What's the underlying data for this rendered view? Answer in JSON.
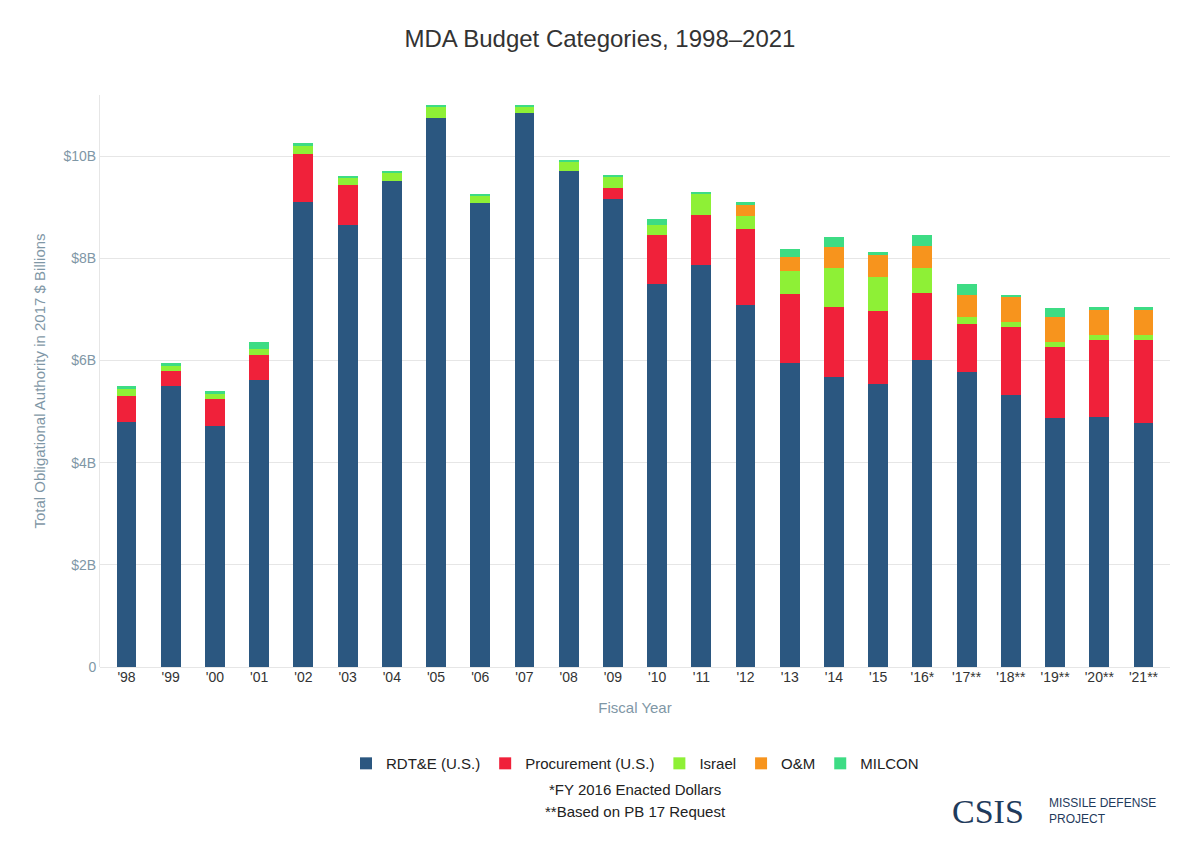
{
  "chart_data": {
    "type": "bar",
    "title": "MDA Budget Categories, 1998–2021",
    "x_label": "Fiscal Year",
    "y_label": "Total Obligational Authority in 2017 $ Billions",
    "categories": [
      "'98",
      "'99",
      "'00",
      "'01",
      "'02",
      "'03",
      "'04",
      "'05",
      "'06",
      "'07",
      "'08",
      "'09",
      "'10",
      "'11",
      "'12",
      "'13",
      "'14",
      "'15",
      "'16*",
      "'17**",
      "'18**",
      "'19**",
      "'20**",
      "'21**"
    ],
    "series": [
      {
        "name": "RDT&E (U.S.)",
        "color": "#2b5780",
        "values": [
          4.8,
          5.5,
          4.72,
          5.62,
          9.1,
          8.65,
          9.52,
          10.75,
          9.08,
          10.85,
          9.72,
          9.17,
          7.5,
          7.88,
          7.08,
          5.95,
          5.68,
          5.55,
          6.02,
          5.78,
          5.33,
          4.87,
          4.9,
          4.78
        ]
      },
      {
        "name": "Procurement (U.S.)",
        "color": "#f0213a",
        "values": [
          0.5,
          0.3,
          0.52,
          0.48,
          0.95,
          0.78,
          0,
          0,
          0,
          0,
          0,
          0.2,
          0.95,
          0.97,
          1.5,
          1.35,
          1.37,
          1.43,
          1.3,
          0.93,
          1.32,
          1.4,
          1.5,
          1.62
        ]
      },
      {
        "name": "Israel",
        "color": "#8ef036",
        "values": [
          0.15,
          0.1,
          0.1,
          0.12,
          0.15,
          0.15,
          0.17,
          0.22,
          0.15,
          0.12,
          0.18,
          0.23,
          0.2,
          0.43,
          0.25,
          0.45,
          0.77,
          0.65,
          0.5,
          0.15,
          0.1,
          0.1,
          0.1,
          0.1
        ]
      },
      {
        "name": "O&M",
        "color": "#f7941d",
        "values": [
          0,
          0,
          0,
          0,
          0,
          0,
          0,
          0,
          0,
          0,
          0,
          0,
          0,
          0,
          0.22,
          0.28,
          0.4,
          0.43,
          0.43,
          0.42,
          0.5,
          0.48,
          0.5,
          0.5
        ]
      },
      {
        "name": "MILCON",
        "color": "#3ddc84",
        "values": [
          0.05,
          0.05,
          0.06,
          0.15,
          0.07,
          0.03,
          0.03,
          0.03,
          0.03,
          0.03,
          0.03,
          0.03,
          0.12,
          0.03,
          0.05,
          0.15,
          0.2,
          0.07,
          0.2,
          0.22,
          0.03,
          0.17,
          0.05,
          0.05
        ]
      }
    ],
    "ylim": [
      0,
      11.2
    ],
    "yticks": [
      0,
      {
        "value": 2,
        "label": "$2B"
      },
      {
        "value": 4,
        "label": "$4B"
      },
      {
        "value": 6,
        "label": "$6B"
      },
      {
        "value": 8,
        "label": "$8B"
      },
      {
        "value": 10,
        "label": "$10B"
      }
    ],
    "grid": true,
    "stacked": true,
    "legend": "bottom",
    "annotations": [
      "*FY 2016 Enacted Dollars",
      "**Based on PB 17 Request"
    ],
    "logo": "CSIS",
    "logo_text": [
      "MISSILE DEFENSE",
      "PROJECT"
    ]
  }
}
